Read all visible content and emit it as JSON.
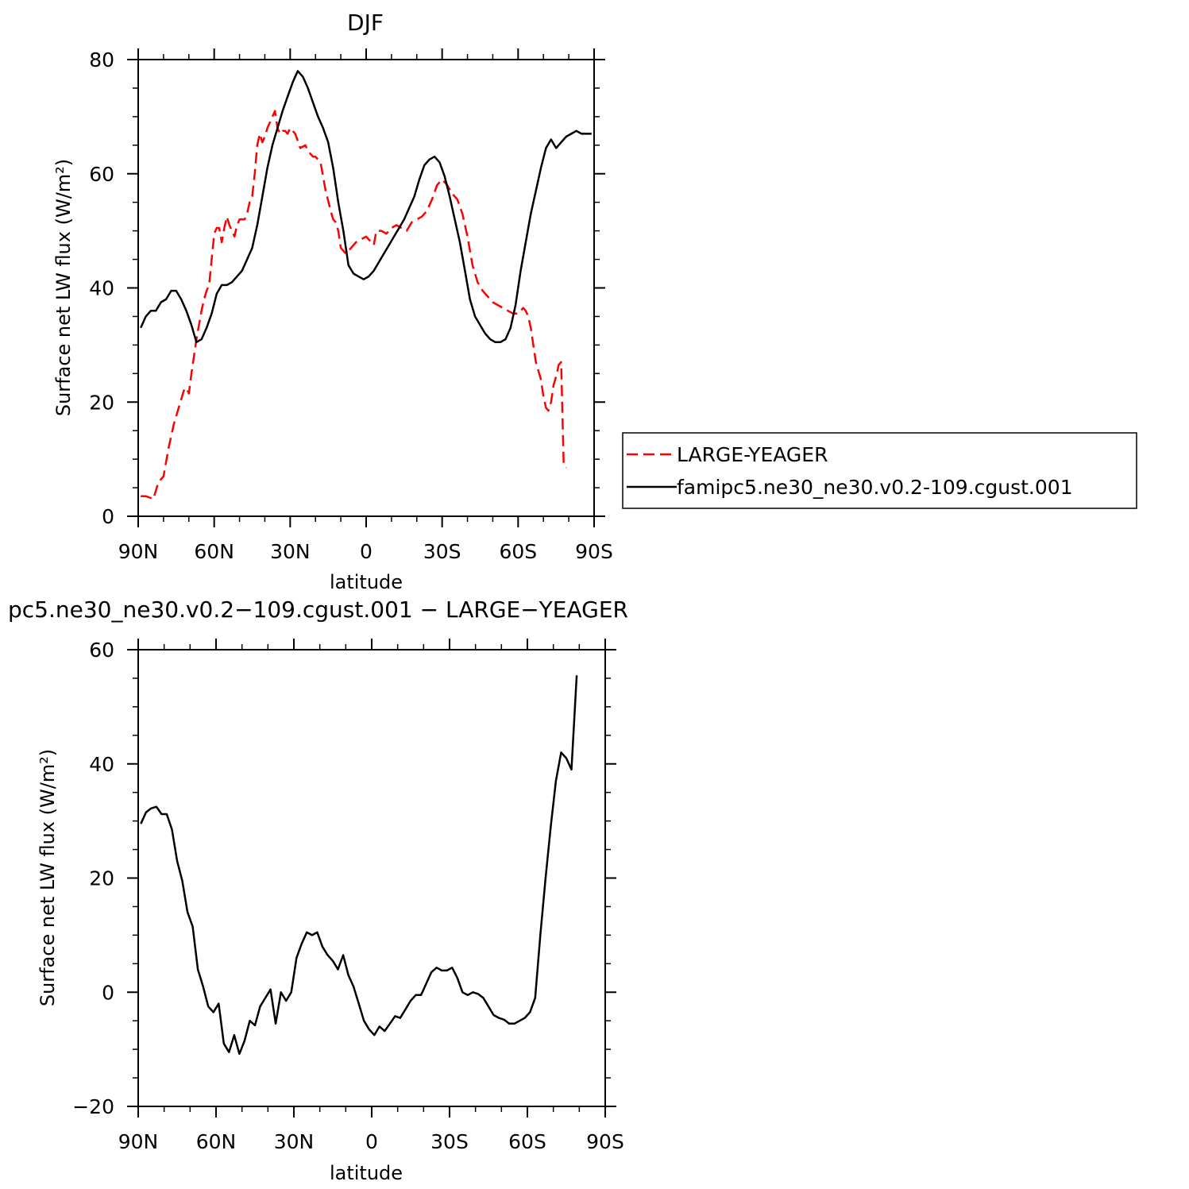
{
  "chart_data": [
    {
      "type": "line",
      "title": "DJF",
      "xlabel": "latitude",
      "ylabel": "Surface net LW flux (W/m²)",
      "xlim": [
        90,
        -90
      ],
      "ylim": [
        0,
        80
      ],
      "x_ticks": [
        "90N",
        "60N",
        "30N",
        "0",
        "30S",
        "60S",
        "90S"
      ],
      "x_tick_values": [
        90,
        60,
        30,
        0,
        -30,
        -60,
        -90
      ],
      "y_ticks": [
        "0",
        "20",
        "40",
        "60",
        "80"
      ],
      "y_tick_values": [
        0,
        20,
        40,
        60,
        80
      ],
      "grid": false,
      "legend": "right",
      "series": [
        {
          "name": "LARGE-YEAGER",
          "color": "#ff0000",
          "dash": "dashed",
          "x": [
            89,
            87,
            85,
            84,
            82,
            80,
            78,
            76,
            74,
            72,
            71,
            70,
            69,
            68,
            67,
            66,
            65,
            64,
            63,
            62,
            61,
            60,
            59,
            58,
            57,
            56,
            55,
            54,
            53,
            52,
            51,
            50,
            49,
            48,
            47,
            46,
            45,
            44,
            43,
            42,
            41,
            40,
            39,
            38,
            37,
            36,
            35,
            34,
            33,
            32,
            31,
            30,
            28,
            26,
            24,
            23,
            22,
            21,
            20,
            18,
            16,
            14,
            13,
            12,
            11,
            10,
            8,
            6,
            5,
            4,
            2,
            0,
            -2,
            -3,
            -4,
            -6,
            -8,
            -10,
            -12,
            -14,
            -16,
            -18,
            -20,
            -22,
            -24,
            -26,
            -28,
            -30,
            -32,
            -34,
            -36,
            -38,
            -40,
            -42,
            -44,
            -46,
            -48,
            -50,
            -52,
            -54,
            -56,
            -58,
            -60,
            -62,
            -63,
            -64,
            -65,
            -66,
            -67,
            -68,
            -69,
            -70,
            -71,
            -72,
            -73,
            -74,
            -75,
            -76,
            -77,
            -78,
            -79
          ],
          "y": [
            3.5,
            3.5,
            3.2,
            3.0,
            6.0,
            7.0,
            12.0,
            16.0,
            19.0,
            22.0,
            22.5,
            21.5,
            25.0,
            28.0,
            31.0,
            33.5,
            36.0,
            38.0,
            39.5,
            40.5,
            45.0,
            49.5,
            50.5,
            50.5,
            48.0,
            50.5,
            52.5,
            51.0,
            50.0,
            49.0,
            51.0,
            52.0,
            52.0,
            52.0,
            53.0,
            55.0,
            56.0,
            60.0,
            65.0,
            67.0,
            65.5,
            66.5,
            68.0,
            69.0,
            70.0,
            71.0,
            68.0,
            67.0,
            67.5,
            67.5,
            67.0,
            68.0,
            67.0,
            64.5,
            65.0,
            64.0,
            63.5,
            63.0,
            63.0,
            62.0,
            57.0,
            53.5,
            52.0,
            51.5,
            50.0,
            47.0,
            46.0,
            47.0,
            47.5,
            48.0,
            48.5,
            49.0,
            48.0,
            47.5,
            50.0,
            50.0,
            49.5,
            50.5,
            51.0,
            50.5,
            50.0,
            51.5,
            52.0,
            52.5,
            53.5,
            55.5,
            58.0,
            59.0,
            58.0,
            56.5,
            55.5,
            53.0,
            49.0,
            44.0,
            41.0,
            39.5,
            38.5,
            37.5,
            37.0,
            36.5,
            36.0,
            35.5,
            35.5,
            36.5,
            36.0,
            35.0,
            33.0,
            30.0,
            27.0,
            25.5,
            24.0,
            21.0,
            19.0,
            18.5,
            20.0,
            23.0,
            24.5,
            26.5,
            27.0,
            9.0,
            8.5
          ]
        },
        {
          "name": "famipc5.ne30_ne30.v0.2-109.cgust.001",
          "color": "#000000",
          "dash": "solid",
          "x": [
            89,
            87,
            85,
            83,
            81,
            79,
            77,
            75,
            73,
            71,
            69,
            67,
            65,
            63,
            61,
            59,
            57,
            55,
            53,
            51,
            49,
            47,
            45,
            43,
            41,
            39,
            37,
            35,
            33,
            31,
            29,
            27,
            25,
            23,
            21,
            19,
            17,
            15,
            13,
            11,
            9,
            7,
            5,
            3,
            1,
            -1,
            -3,
            -5,
            -7,
            -9,
            -11,
            -13,
            -15,
            -17,
            -19,
            -21,
            -23,
            -25,
            -27,
            -29,
            -31,
            -33,
            -35,
            -37,
            -39,
            -41,
            -43,
            -45,
            -47,
            -49,
            -51,
            -53,
            -55,
            -57,
            -59,
            -61,
            -63,
            -65,
            -67,
            -69,
            -71,
            -73,
            -75,
            -77,
            -79,
            -81,
            -83,
            -85,
            -87,
            -89
          ],
          "y": [
            33.0,
            35.0,
            36.0,
            36.0,
            37.5,
            38.0,
            39.5,
            39.5,
            38.0,
            36.0,
            33.5,
            30.5,
            31.0,
            33.0,
            35.5,
            39.0,
            40.5,
            40.5,
            41.0,
            42.0,
            43.0,
            45.0,
            47.0,
            51.0,
            56.0,
            61.0,
            65.0,
            68.0,
            71.0,
            73.5,
            76.0,
            78.0,
            77.0,
            75.0,
            72.5,
            70.0,
            68.0,
            65.5,
            61.0,
            55.0,
            50.0,
            44.0,
            42.5,
            42.0,
            41.5,
            42.0,
            43.0,
            44.5,
            46.0,
            47.5,
            49.0,
            50.5,
            52.0,
            54.0,
            56.0,
            59.0,
            61.5,
            62.5,
            63.0,
            62.0,
            59.5,
            56.0,
            52.0,
            48.0,
            43.0,
            38.0,
            35.0,
            33.5,
            32.0,
            31.0,
            30.5,
            30.5,
            31.0,
            33.0,
            37.0,
            43.0,
            48.0,
            53.0,
            57.0,
            61.0,
            64.5,
            66.0,
            64.5,
            65.5,
            66.5,
            67.0,
            67.5,
            67.0,
            67.0,
            67.0
          ]
        }
      ]
    },
    {
      "type": "line",
      "title": "pc5.ne30_ne30.v0.2−109.cgust.001 − LARGE−YEAGER",
      "xlabel": "latitude",
      "ylabel": "Surface net LW flux (W/m²)",
      "xlim": [
        90,
        -90
      ],
      "ylim": [
        -20,
        60
      ],
      "x_ticks": [
        "90N",
        "60N",
        "30N",
        "0",
        "30S",
        "60S",
        "90S"
      ],
      "x_tick_values": [
        90,
        60,
        30,
        0,
        -30,
        -60,
        -90
      ],
      "y_ticks": [
        "−20",
        "0",
        "20",
        "40",
        "60"
      ],
      "y_tick_values": [
        -20,
        0,
        20,
        40,
        60
      ],
      "grid": false,
      "series": [
        {
          "color": "#000000",
          "dash": "solid",
          "x": [
            89,
            87,
            85,
            83,
            81,
            79,
            77,
            75,
            73,
            71,
            69,
            67,
            65,
            63,
            61,
            59,
            57,
            55,
            53,
            51,
            49,
            47,
            45,
            43,
            41,
            39,
            37,
            35,
            33,
            31,
            29,
            27,
            25,
            23,
            21,
            19,
            17,
            15,
            13,
            11,
            9,
            7,
            5,
            3,
            1,
            -1,
            -3,
            -5,
            -7,
            -9,
            -11,
            -13,
            -15,
            -17,
            -19,
            -21,
            -23,
            -25,
            -27,
            -29,
            -31,
            -33,
            -35,
            -37,
            -39,
            -41,
            -43,
            -45,
            -47,
            -49,
            -51,
            -53,
            -55,
            -57,
            -59,
            -61,
            -63,
            -65,
            -67,
            -69,
            -71,
            -73,
            -75,
            -77,
            -79
          ],
          "y": [
            29.5,
            31.5,
            32.2,
            32.5,
            31.2,
            31.2,
            28.5,
            23.0,
            19.5,
            14.0,
            11.5,
            4.0,
            1.0,
            -2.5,
            -3.5,
            -2.0,
            -9.0,
            -10.5,
            -7.5,
            -10.8,
            -8.5,
            -5.0,
            -5.8,
            -2.5,
            -1.0,
            0.5,
            -5.5,
            0.0,
            -1.5,
            0.0,
            6.0,
            8.5,
            10.5,
            10.0,
            10.5,
            8.0,
            6.5,
            5.5,
            4.0,
            6.5,
            3.0,
            1.0,
            -2.0,
            -5.0,
            -6.5,
            -7.5,
            -6.0,
            -6.8,
            -5.5,
            -4.2,
            -4.5,
            -3.0,
            -1.5,
            -0.5,
            -0.5,
            1.5,
            3.5,
            4.3,
            3.8,
            3.8,
            4.3,
            2.5,
            0.0,
            -0.5,
            0.0,
            -0.3,
            -1.0,
            -2.5,
            -4.0,
            -4.5,
            -4.8,
            -5.5,
            -5.5,
            -5.0,
            -4.5,
            -3.5,
            -1.0,
            10.0,
            20.0,
            29.0,
            37.0,
            42.0,
            41.0,
            39.0,
            55.5
          ]
        }
      ]
    }
  ]
}
